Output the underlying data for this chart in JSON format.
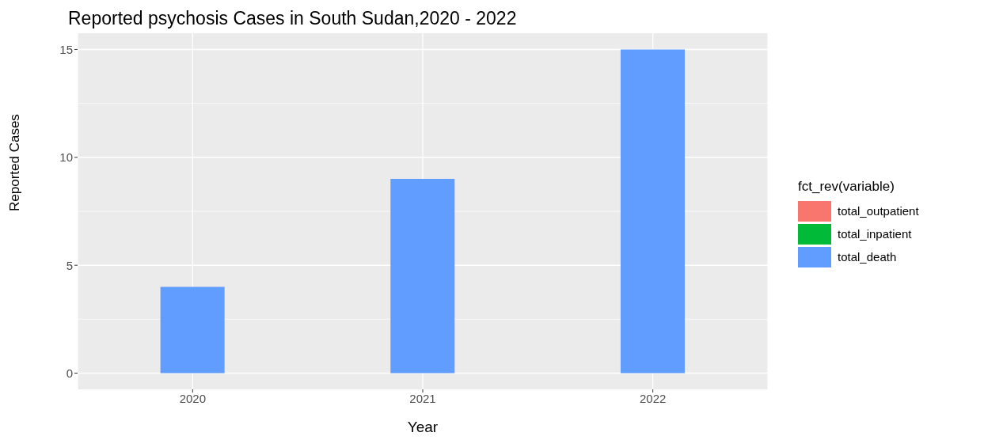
{
  "chart_data": {
    "type": "bar",
    "title": "Reported psychosis Cases in South Sudan,2020 - 2022",
    "xlabel": "Year",
    "ylabel": "Reported Cases",
    "legend_title": "fct_rev(variable)",
    "categories": [
      "2020",
      "2021",
      "2022"
    ],
    "stacked": true,
    "series": [
      {
        "name": "total_outpatient",
        "color": "#f8766d",
        "values": [
          0,
          0,
          0
        ]
      },
      {
        "name": "total_inpatient",
        "color": "#00ba38",
        "values": [
          0,
          0,
          0
        ]
      },
      {
        "name": "total_death",
        "color": "#619cff",
        "values": [
          4,
          9,
          15
        ]
      }
    ],
    "ylim": [
      -0.75,
      15.75
    ],
    "yticks": [
      0,
      {
        "value": 2.5,
        "label": null
      },
      5,
      {
        "value": 7.5,
        "label": null
      },
      10,
      {
        "value": 12.5,
        "label": null
      },
      15
    ],
    "grid": true,
    "legend": "right"
  }
}
